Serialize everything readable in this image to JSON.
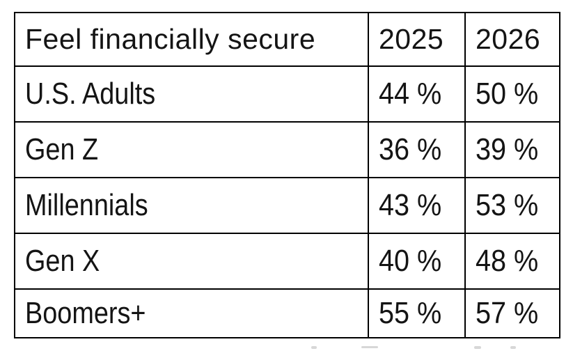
{
  "table": {
    "header": {
      "title": "Feel financially secure",
      "y2025": "2025",
      "y2026": "2026"
    },
    "rows": [
      {
        "label": "U.S. Adults",
        "v2025": "44 %",
        "v2026": "50 %"
      },
      {
        "label": "Gen Z",
        "v2025": "36 %",
        "v2026": "39 %"
      },
      {
        "label": "Millennials",
        "v2025": "43 %",
        "v2026": "53 %"
      },
      {
        "label": "Gen X",
        "v2025": "40 %",
        "v2026": "48 %"
      },
      {
        "label": "Boomers+",
        "v2025": "55 %",
        "v2026": "57 %"
      }
    ]
  },
  "colors": {
    "border": "#000000",
    "text": "#141414",
    "background": "#ffffff"
  },
  "chart_data": {
    "type": "table",
    "title": "Feel financially secure",
    "columns": [
      "Feel financially secure",
      "2025",
      "2026"
    ],
    "categories": [
      "U.S. Adults",
      "Gen Z",
      "Millennials",
      "Gen X",
      "Boomers+"
    ],
    "series": [
      {
        "name": "2025",
        "values": [
          44,
          36,
          43,
          40,
          55
        ]
      },
      {
        "name": "2026",
        "values": [
          50,
          39,
          53,
          48,
          57
        ]
      }
    ],
    "unit": "%",
    "grid": "full-borders",
    "legend_position": "none"
  }
}
